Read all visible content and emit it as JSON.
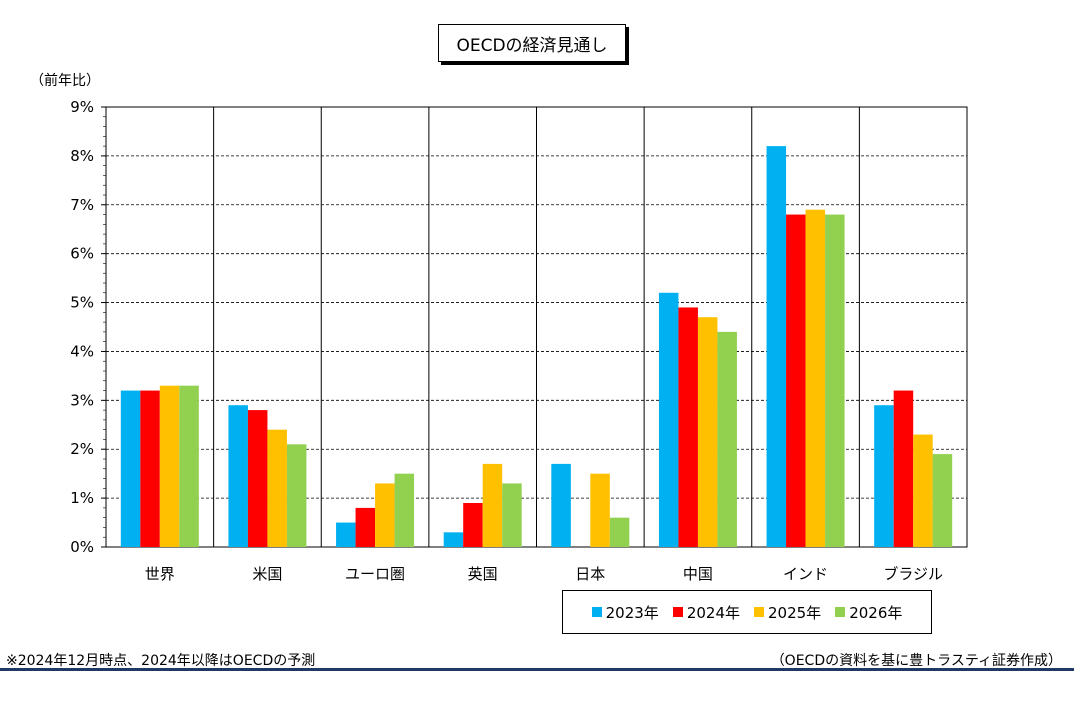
{
  "chart_data": {
    "type": "bar",
    "title": "OECDの経済見通し",
    "ylabel": "（前年比）",
    "ylim": [
      0,
      9
    ],
    "yticks": [
      "0%",
      "1%",
      "2%",
      "3%",
      "4%",
      "5%",
      "6%",
      "7%",
      "8%",
      "9%"
    ],
    "grid": true,
    "legend_position": "bottom-right",
    "categories": [
      "世界",
      "米国",
      "ユーロ圏",
      "英国",
      "日本",
      "中国",
      "インド",
      "ブラジル"
    ],
    "series": [
      {
        "name": "2023年",
        "color": "#00b0f0",
        "values": [
          3.2,
          2.9,
          0.5,
          0.3,
          1.7,
          5.2,
          8.2,
          2.9
        ]
      },
      {
        "name": "2024年",
        "color": "#ff0000",
        "values": [
          3.2,
          2.8,
          0.8,
          0.9,
          0.0,
          4.9,
          6.8,
          3.2
        ]
      },
      {
        "name": "2025年",
        "color": "#ffc000",
        "values": [
          3.3,
          2.4,
          1.3,
          1.7,
          1.5,
          4.7,
          6.9,
          2.3
        ]
      },
      {
        "name": "2026年",
        "color": "#92d050",
        "values": [
          3.3,
          2.1,
          1.5,
          1.3,
          0.6,
          4.4,
          6.8,
          1.9
        ]
      }
    ]
  },
  "footer": {
    "note": "※2024年12月時点、2024年以降はOECDの予測",
    "source": "（OECDの資料を基に豊トラスティ証券作成）"
  }
}
